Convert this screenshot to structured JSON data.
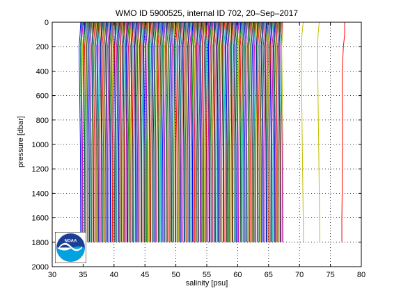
{
  "chart_data": {
    "type": "line",
    "title": "WMO ID 5900525, internal ID 702, 20–Sep–2017",
    "xlabel": "salinity [psu]",
    "ylabel": "pressure [dbar]",
    "xlim": [
      30,
      80
    ],
    "ylim": [
      2000,
      0
    ],
    "y_reversed": true,
    "grid": true,
    "grid_style": "dotted",
    "xticks": [
      30,
      35,
      40,
      45,
      50,
      55,
      60,
      65,
      70,
      75,
      80
    ],
    "yticks": [
      0,
      200,
      400,
      600,
      800,
      1000,
      1200,
      1400,
      1600,
      1800,
      2000
    ],
    "profile_pressures": [
      0,
      100,
      200,
      400,
      600,
      800,
      1000,
      1200,
      1400,
      1600,
      1800
    ],
    "offset_step": 0.1,
    "dense_profiles": {
      "first_surface_salinity": 34.6,
      "last_surface_salinity": 67.3,
      "count": 328,
      "shape_offsets": [
        0.0,
        -0.1,
        -0.25,
        -0.2,
        -0.15,
        -0.1,
        -0.05,
        -0.03,
        -0.02,
        -0.01,
        0.0
      ],
      "color_cycle": [
        "#0000ff",
        "#008000",
        "#ff0000",
        "#00bfbf",
        "#bf00bf",
        "#bfbf00",
        "#404040"
      ]
    },
    "series": [
      {
        "color": "#bfbf00",
        "x": [
          70.6,
          70.4,
          70.3,
          70.3,
          70.35,
          70.4,
          70.45,
          70.5,
          70.55,
          70.6,
          70.65
        ]
      },
      {
        "color": "#bfbf00",
        "x": [
          73.2,
          73.0,
          72.95,
          72.95,
          73.0,
          73.05,
          73.1,
          73.15,
          73.2,
          73.25,
          73.3
        ]
      },
      {
        "color": "#ff0000",
        "x": [
          77.3,
          77.3,
          77.1,
          76.9,
          76.9,
          76.95,
          76.95,
          76.9,
          76.9,
          76.85,
          76.85
        ]
      }
    ]
  },
  "logo": {
    "text": "NOAA"
  }
}
